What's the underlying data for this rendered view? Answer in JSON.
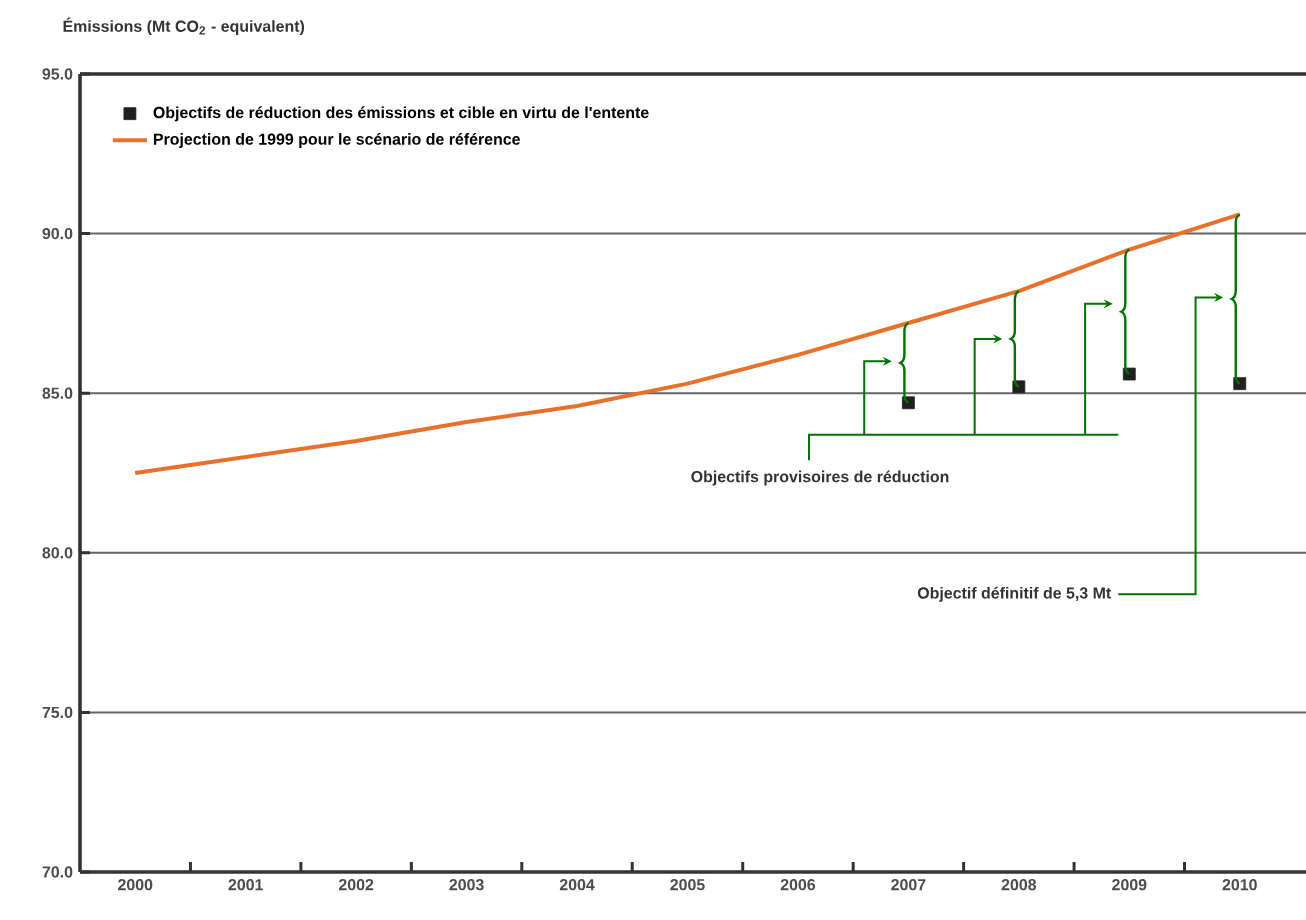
{
  "chart_data": {
    "type": "line",
    "ylabel": "Émissions (Mt CO$_{2}$ - equivalent)",
    "categories": [
      "2000",
      "2001",
      "2002",
      "2003",
      "2004",
      "2005",
      "2006",
      "2007",
      "2008",
      "2009",
      "2010"
    ],
    "series": [
      {
        "name": "Objectifs de réduction des émissions et cible en virtu de l'entente",
        "type": "scatter",
        "marker": "square",
        "color": "#231f20",
        "values": [
          null,
          null,
          null,
          null,
          null,
          null,
          null,
          84.7,
          85.2,
          85.6,
          85.3
        ]
      },
      {
        "name": "Projection de 1999 pour le scénario de référence",
        "marker": "none",
        "color": "#e8702a",
        "values": [
          82.5,
          83.0,
          83.5,
          84.1,
          84.6,
          85.3,
          86.2,
          87.2,
          88.2,
          89.5,
          90.6
        ]
      }
    ],
    "ylim": [
      70,
      95
    ],
    "yticks": [
      {
        "value": 70,
        "label": "70.0"
      },
      {
        "value": 75,
        "label": "75.0"
      },
      {
        "value": 80,
        "label": "80.0"
      },
      {
        "value": 85,
        "label": "85.0"
      },
      {
        "value": 90,
        "label": "90.0"
      },
      {
        "value": 95,
        "label": "95.0"
      }
    ],
    "grid": "y",
    "legend": "top left",
    "annotations": [
      "Objectifs provisoires de réduction",
      "Objectif définitif de 5,3 Mt"
    ]
  }
}
